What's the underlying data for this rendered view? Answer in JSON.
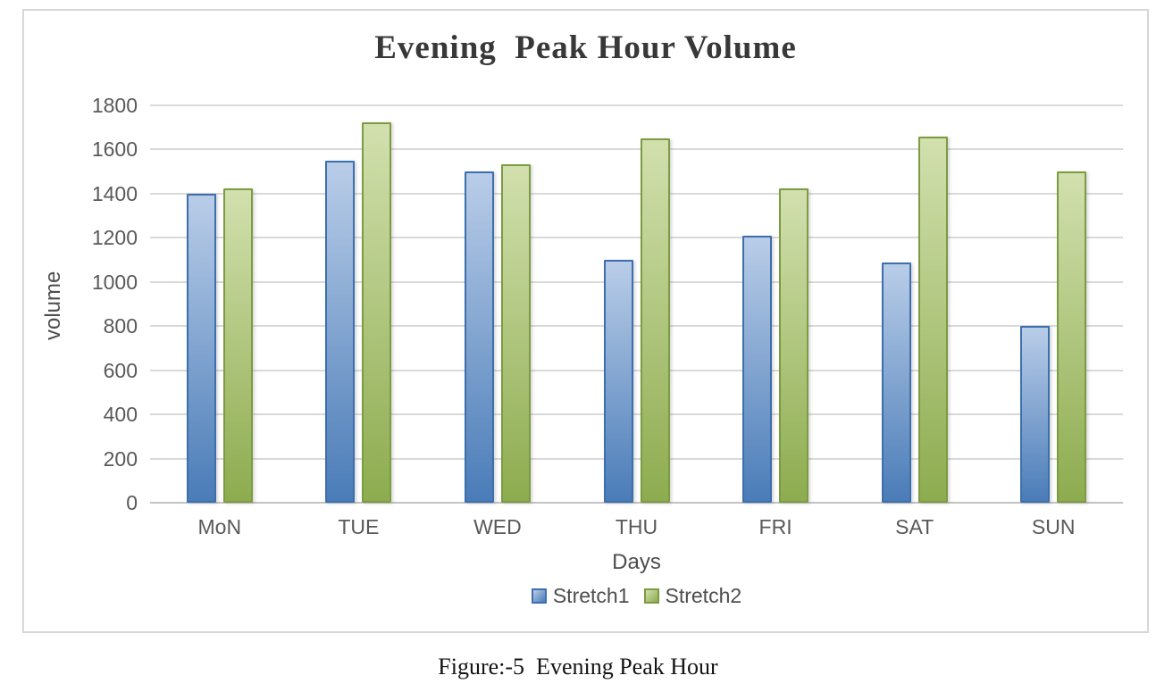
{
  "figure": {
    "caption": "Figure:-5  Evening Peak Hour"
  },
  "chart_data": {
    "type": "bar",
    "title": "Evening  Peak Hour Volume",
    "xlabel": "Days",
    "ylabel": "volume",
    "categories": [
      "MoN",
      "TUE",
      "WED",
      "THU",
      "FRI",
      "SAT",
      "SUN"
    ],
    "series": [
      {
        "name": "Stretch1",
        "values": [
          1400,
          1550,
          1500,
          1100,
          1210,
          1090,
          800
        ],
        "fill_top": "#b9cde8",
        "fill_bottom": "#4a7cb8",
        "border": "#3e6fad"
      },
      {
        "name": "Stretch2",
        "values": [
          1425,
          1725,
          1535,
          1650,
          1425,
          1660,
          1500
        ],
        "fill_top": "#d2e0ae",
        "fill_bottom": "#8dac4f",
        "border": "#7d9b42"
      }
    ],
    "ylim": [
      0,
      1800
    ],
    "ytick_step": 200,
    "grid": true,
    "legend_position": "bottom",
    "colors": {
      "gridline": "#d9d9d9",
      "axis_line": "#c3c3c3",
      "tick_text": "#595959",
      "title_text": "#383838"
    }
  }
}
